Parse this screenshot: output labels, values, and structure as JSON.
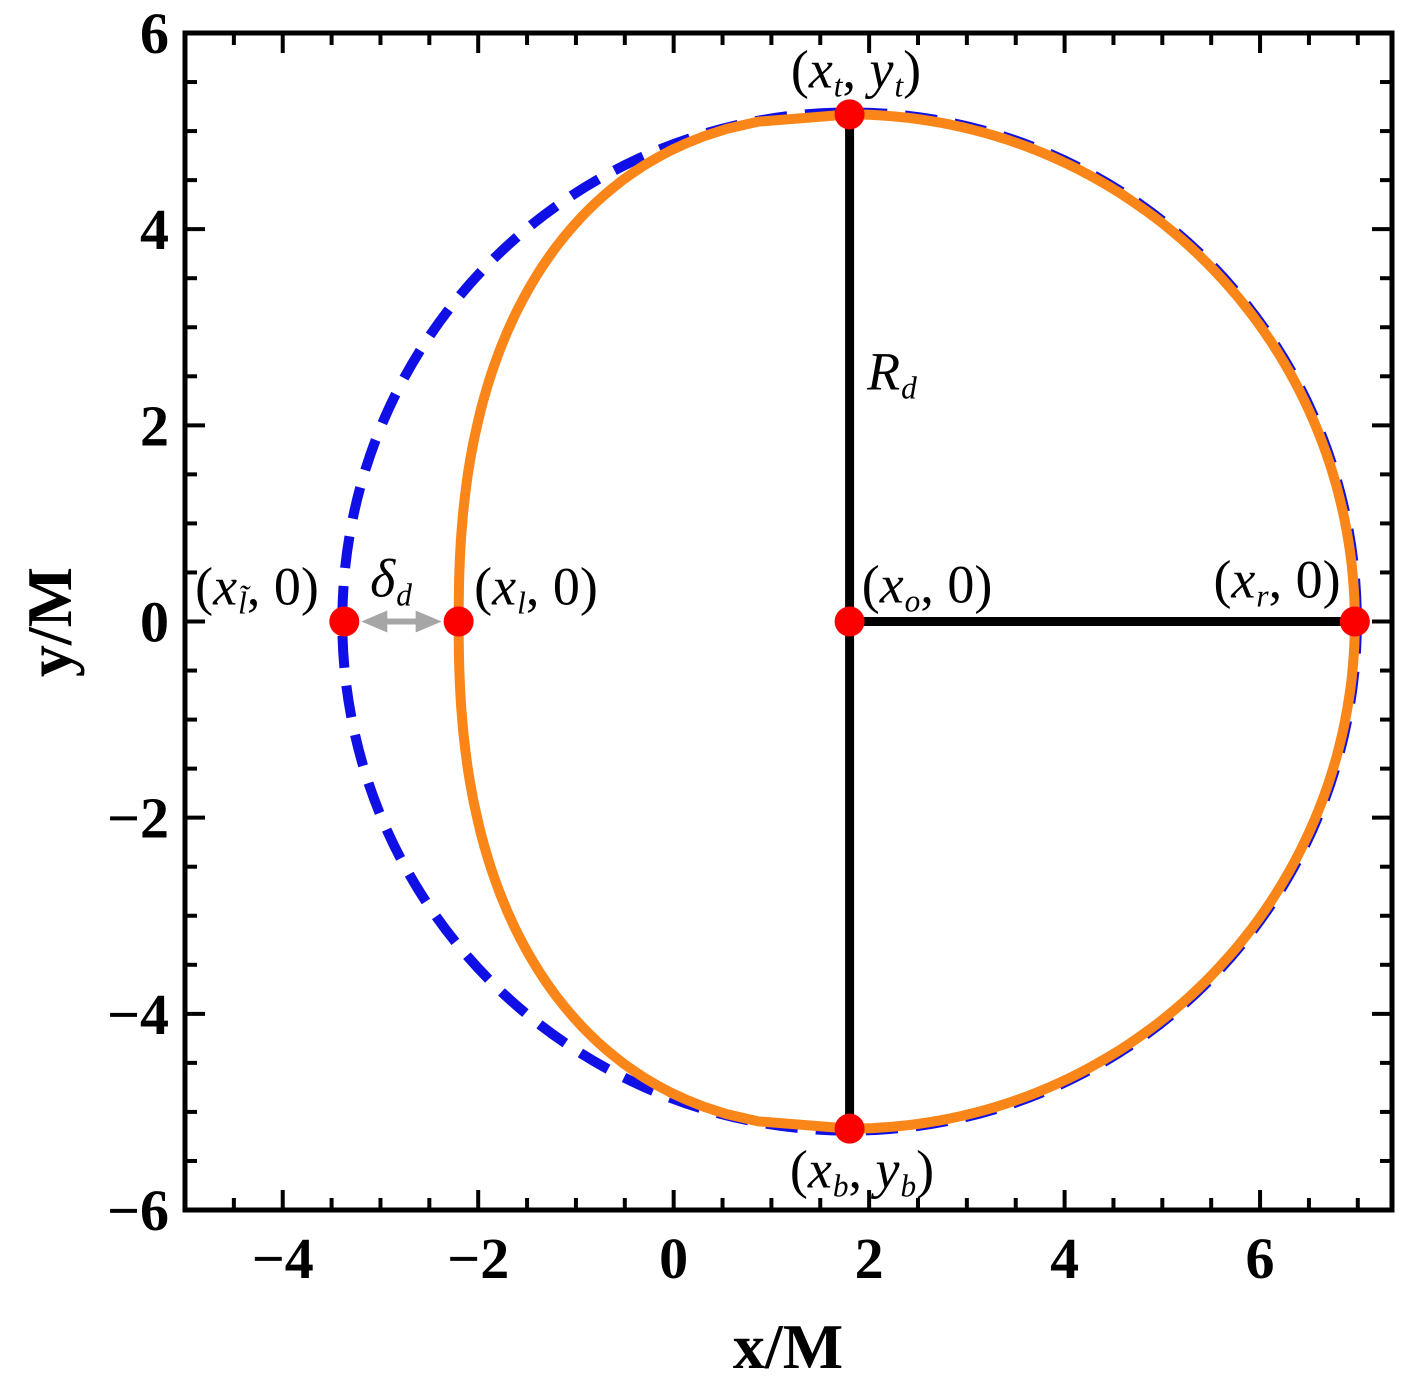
{
  "chart_data": {
    "type": "line",
    "title": "",
    "xlabel": "x/M",
    "ylabel": "y/M",
    "xlim": [
      -5,
      7.35
    ],
    "ylim": [
      -6,
      6
    ],
    "xticks": [
      -4,
      -2,
      0,
      2,
      4,
      6
    ],
    "yticks": [
      -6,
      -4,
      -2,
      0,
      2,
      4,
      6
    ],
    "minor_tick_step": 0.5,
    "grid": false,
    "legend": "none",
    "series": [
      {
        "name": "reference-circle",
        "style": "dashed",
        "color": "#1010E6",
        "shape": "circle",
        "center_x": 1.8,
        "center_y": 0,
        "radius": 5.17
      },
      {
        "name": "shadow-boundary",
        "style": "solid",
        "color": "#FA8518",
        "shape": "d-shape",
        "center_x": 1.8,
        "top_y": 5.17,
        "bottom_y": -5.17,
        "right_x": 6.97,
        "left_x": -2.2,
        "left_exponent": 2.35
      }
    ],
    "segments": [
      {
        "name": "vertical-diameter",
        "x1": 1.8,
        "y1": 5.17,
        "x2": 1.8,
        "y2": -5.17
      },
      {
        "name": "horizontal-radius",
        "x1": 1.8,
        "y1": 0,
        "x2": 6.97,
        "y2": 0
      }
    ],
    "segment_color": "#000000",
    "arrow": {
      "name": "delta-distortion-arrow",
      "from_x": -3.37,
      "to_x": -2.2,
      "y": 0,
      "color": "#A6A6A6"
    },
    "markers": {
      "color": "#FC0000",
      "points": [
        {
          "name": "top",
          "x": 1.8,
          "y": 5.17
        },
        {
          "name": "bottom",
          "x": 1.8,
          "y": -5.17
        },
        {
          "name": "center",
          "x": 1.8,
          "y": 0
        },
        {
          "name": "right",
          "x": 6.97,
          "y": 0
        },
        {
          "name": "left-shadow",
          "x": -2.2,
          "y": 0
        },
        {
          "name": "left-circle",
          "x": -3.37,
          "y": 0
        }
      ]
    },
    "values": {
      "x_o": 1.8,
      "R_d": 5.17,
      "x_t": 1.8,
      "y_t": 5.17,
      "x_b": 1.8,
      "y_b": -5.17,
      "x_r": 6.97,
      "x_l": -2.2,
      "x_l_tilde": -3.37,
      "delta_d": 1.17
    }
  },
  "labels": {
    "top": {
      "open": "(",
      "v1": "x",
      "s1": "t",
      "sep": ", ",
      "v2": "y",
      "s2": "t",
      "close": ")"
    },
    "bottom": {
      "open": "(",
      "v1": "x",
      "s1": "b",
      "sep": ", ",
      "v2": "y",
      "s2": "b",
      "close": ")"
    },
    "left_circle": {
      "open": "(",
      "v1": "x",
      "s1": "l̃",
      "sep": ", ",
      "v2": "0",
      "close": ")"
    },
    "left_shadow": {
      "open": "(",
      "v1": "x",
      "s1": "l",
      "sep": ", ",
      "v2": "0",
      "close": ")"
    },
    "center": {
      "open": "(",
      "v1": "x",
      "s1": "o",
      "sep": ", ",
      "v2": "0",
      "close": ")"
    },
    "right": {
      "open": "(",
      "v1": "x",
      "s1": "r",
      "sep": ", ",
      "v2": "0",
      "close": ")"
    },
    "radius": {
      "v1": "R",
      "s1": "d"
    },
    "delta": {
      "v1": "δ",
      "s1": "d"
    }
  },
  "axes": {
    "x_title_var": "x",
    "x_title_rest": "/M",
    "y_title_var": "y",
    "y_title_rest": "/M"
  }
}
